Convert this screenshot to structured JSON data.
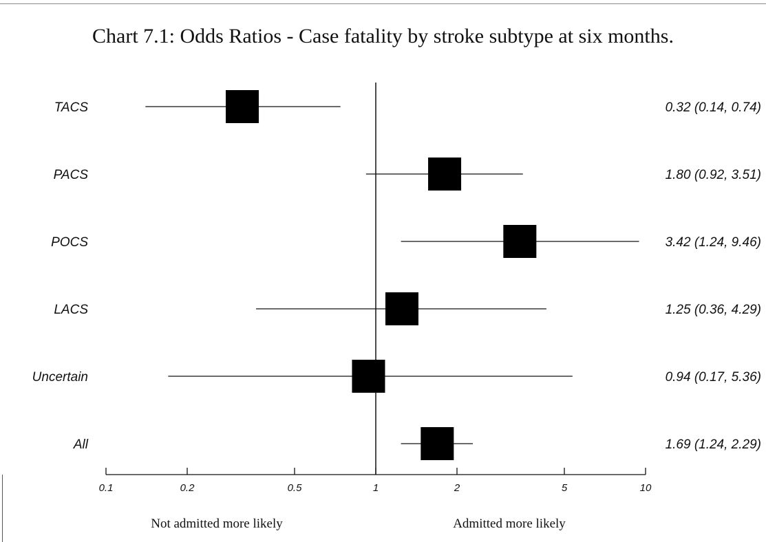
{
  "chart_data": {
    "type": "forest",
    "title": "Chart 7.1: Odds Ratios - Case fatality by stroke subtype at six months.",
    "x_scale": "log",
    "xlim": [
      0.1,
      10
    ],
    "reference_value": 1,
    "x_ticks": [
      {
        "value": 0.1,
        "label": "0.1"
      },
      {
        "value": 0.2,
        "label": "0.2"
      },
      {
        "value": 0.5,
        "label": "0.5"
      },
      {
        "value": 1,
        "label": "1"
      },
      {
        "value": 2,
        "label": "2"
      },
      {
        "value": 5,
        "label": "5"
      },
      {
        "value": 10,
        "label": "10"
      }
    ],
    "rows": [
      {
        "label": "TACS",
        "or": 0.32,
        "lower": 0.14,
        "upper": 0.74,
        "ci_text": "0.32 (0.14, 0.74)"
      },
      {
        "label": "PACS",
        "or": 1.8,
        "lower": 0.92,
        "upper": 3.51,
        "ci_text": "1.80 (0.92, 3.51)"
      },
      {
        "label": "POCS",
        "or": 3.42,
        "lower": 1.24,
        "upper": 9.46,
        "ci_text": "3.42 (1.24, 9.46)"
      },
      {
        "label": "LACS",
        "or": 1.25,
        "lower": 0.36,
        "upper": 4.29,
        "ci_text": "1.25 (0.36, 4.29)"
      },
      {
        "label": "Uncertain",
        "or": 0.94,
        "lower": 0.17,
        "upper": 5.36,
        "ci_text": "0.94 (0.17, 5.36)"
      },
      {
        "label": "All",
        "or": 1.69,
        "lower": 1.24,
        "upper": 2.29,
        "ci_text": "1.69 (1.24, 2.29)"
      }
    ],
    "left_direction_label": "Not admitted more likely",
    "right_direction_label": "Admitted more likely"
  },
  "colors": {
    "marker": "#000000",
    "line": "#111111",
    "text": "#111111"
  }
}
